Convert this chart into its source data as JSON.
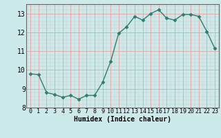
{
  "x": [
    0,
    1,
    2,
    3,
    4,
    5,
    6,
    7,
    8,
    9,
    10,
    11,
    12,
    13,
    14,
    15,
    16,
    17,
    18,
    19,
    20,
    21,
    22,
    23
  ],
  "y": [
    9.8,
    9.75,
    8.8,
    8.7,
    8.55,
    8.65,
    8.45,
    8.65,
    8.65,
    9.35,
    10.45,
    11.95,
    12.3,
    12.85,
    12.65,
    13.0,
    13.2,
    12.75,
    12.65,
    12.95,
    12.95,
    12.85,
    12.05,
    11.15
  ],
  "line_color": "#2e7d6e",
  "marker": "D",
  "marker_size": 2.5,
  "line_width": 1.0,
  "bg_color": "#cceaea",
  "grid_major_color": "#e8a0a0",
  "xlabel": "Humidex (Indice chaleur)",
  "xlabel_fontsize": 7,
  "xlim": [
    -0.5,
    23.5
  ],
  "ylim": [
    8,
    13.5
  ],
  "yticks": [
    8,
    9,
    10,
    11,
    12,
    13
  ],
  "xticks": [
    0,
    1,
    2,
    3,
    4,
    5,
    6,
    7,
    8,
    9,
    10,
    11,
    12,
    13,
    14,
    15,
    16,
    17,
    18,
    19,
    20,
    21,
    22,
    23
  ],
  "tick_fontsize": 6,
  "spine_color": "#666666"
}
